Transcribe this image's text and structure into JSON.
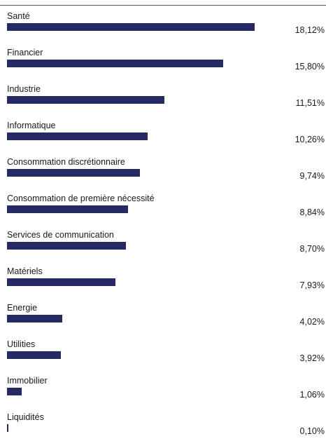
{
  "chart_data": {
    "type": "bar",
    "orientation": "horizontal",
    "bar_color": "#262a63",
    "xlim": [
      0,
      20
    ],
    "grid": false,
    "categories": [
      "Santé",
      "Financier",
      "Industrie",
      "Informatique",
      "Consommation discrétionnaire",
      "Consommation de première nécessité",
      "Services de communication",
      "Matériels",
      "Energie",
      "Utilities",
      "Immobilier",
      "Liquidités"
    ],
    "values": [
      18.12,
      15.8,
      11.51,
      10.26,
      9.74,
      8.84,
      8.7,
      7.93,
      4.02,
      3.92,
      1.06,
      0.1
    ],
    "value_labels": [
      "18,12%",
      "15,80%",
      "11,51%",
      "10,26%",
      "9,74%",
      "8,84%",
      "8,70%",
      "7,93%",
      "4,02%",
      "3,92%",
      "1,06%",
      "0,10%"
    ]
  }
}
